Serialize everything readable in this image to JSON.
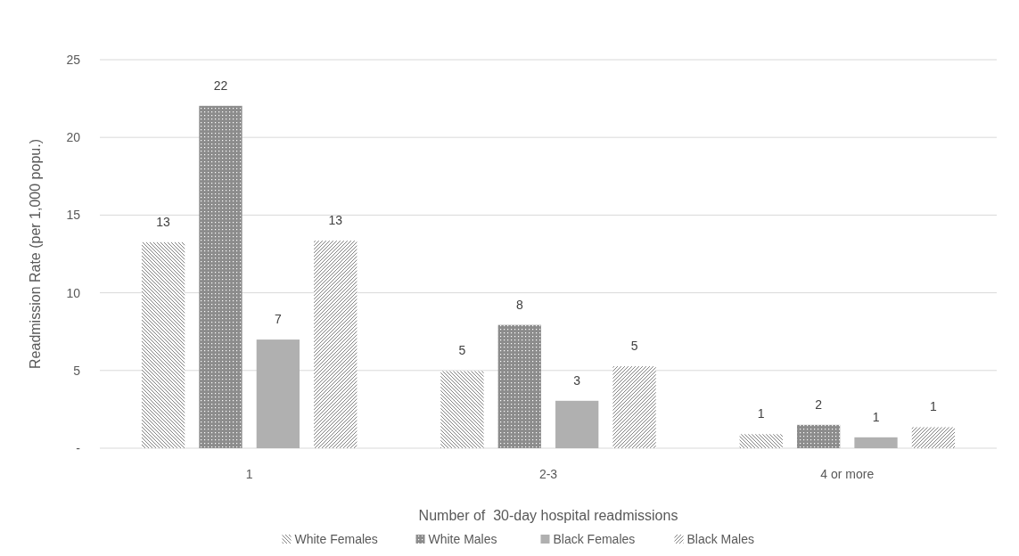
{
  "chart_data": {
    "type": "bar",
    "xlabel": "Number of  30-day hospital readmissions",
    "ylabel": "Readmission Rate (per 1,000 popu.)",
    "categories": [
      "1",
      "2-3",
      "4 or more"
    ],
    "series": [
      {
        "name": "White Females",
        "color": "#808080",
        "values": [
          13.25,
          4.96,
          0.9
        ],
        "value_labels": [
          "13",
          "5",
          "1"
        ]
      },
      {
        "name": "White Males",
        "color": "#8c8c8c",
        "values": [
          22.03,
          7.93,
          1.5
        ],
        "value_labels": [
          "22",
          "8",
          "2"
        ]
      },
      {
        "name": "Black Females",
        "color": "#b0b0b0",
        "values": [
          6.99,
          3.05,
          0.7
        ],
        "value_labels": [
          "7",
          "3",
          "1"
        ]
      },
      {
        "name": "Black Males",
        "color": "#808080",
        "values": [
          13.35,
          5.27,
          1.35
        ],
        "value_labels": [
          "13",
          "5",
          "1"
        ]
      }
    ],
    "ylim": [
      0,
      25
    ],
    "yticks": [
      {
        "value": 0,
        "label": "-"
      },
      5,
      10,
      15,
      20,
      25
    ],
    "grid": "y",
    "legend": "bottom"
  }
}
